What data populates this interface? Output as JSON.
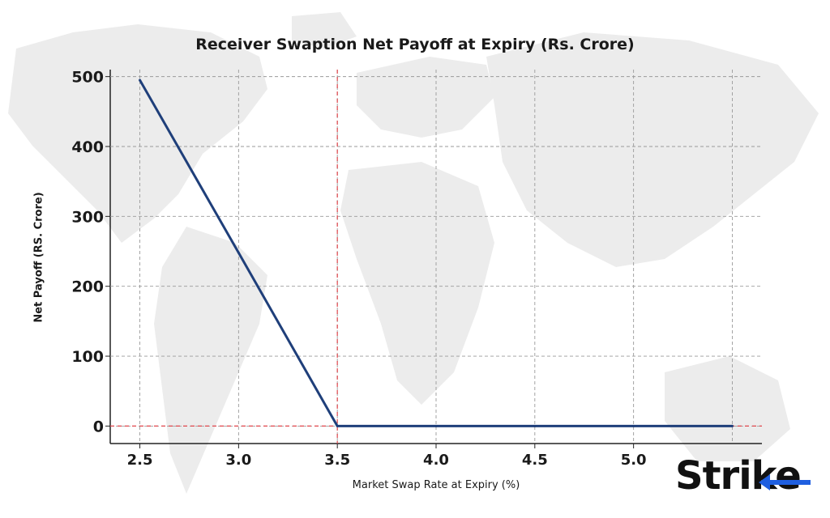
{
  "chart_data": {
    "type": "line",
    "title": "Receiver Swaption Net Payoff at Expiry (Rs. Crore)",
    "xlabel": "Market Swap Rate at Expiry (%)",
    "ylabel": "Net Payoff (RS. Crore)",
    "x": [
      2.5,
      3.0,
      3.5,
      4.0,
      4.5,
      5.0,
      5.5
    ],
    "series": [
      {
        "values": [
          495,
          248,
          0,
          0,
          0,
          0,
          0
        ],
        "color": "#1f3f7a"
      }
    ],
    "xlim": [
      2.35,
      5.65
    ],
    "ylim": [
      -25,
      510
    ],
    "xticks": [
      2.5,
      3.0,
      3.5,
      4.0,
      4.5,
      5.0
    ],
    "xtick_labels": [
      "2.5",
      "3.0",
      "3.5",
      "4.0",
      "4.5",
      "5.0"
    ],
    "yticks": [
      0,
      100,
      200,
      300,
      400,
      500
    ],
    "ytick_labels": [
      "0",
      "100",
      "200",
      "300",
      "400",
      "500"
    ],
    "grid": true,
    "reference_lines": [
      {
        "axis": "x",
        "value": 3.5,
        "color": "#e0474c",
        "style": "dashed"
      },
      {
        "axis": "y",
        "value": 0,
        "color": "#e0474c",
        "style": "dashed"
      }
    ]
  },
  "logo": {
    "text": "Strike"
  },
  "colors": {
    "line": "#1f3f7a",
    "reference": "#e0474c",
    "grid": "#9a9a9a",
    "accent": "#1f5fe0"
  }
}
